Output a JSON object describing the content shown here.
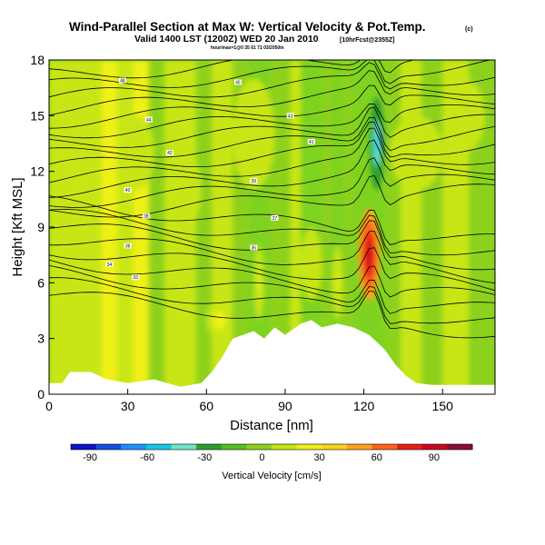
{
  "chart_data": {
    "type": "heatmap",
    "title": "Wind-Parallel Section at Max W: Vertical Velocity & Pot.Temp.",
    "title_mark": "(c)",
    "subtitle": "Valid 1400 LST (1200Z) WED 20 Jan 2010",
    "subtitle_note": "[10hrFcst@2355Z]",
    "subtitle2": "hour/max=1@0 35 61 71 03/2050m",
    "xlabel": "Distance [nm]",
    "ylabel": "Height [Kft MSL]",
    "xlim": [
      0,
      170
    ],
    "ylim": [
      0,
      18
    ],
    "xticks": [
      "0",
      "30",
      "60",
      "90",
      "120",
      "150"
    ],
    "yticks": [
      "0",
      "3",
      "6",
      "9",
      "12",
      "15",
      "18"
    ],
    "colorbar": {
      "label": "Vertical Velocity [cm/s]",
      "ticks": [
        "-90",
        "-60",
        "-30",
        "0",
        "30",
        "60",
        "90"
      ],
      "min": -100,
      "max": 110,
      "colors": [
        "#0a14c8",
        "#1450e6",
        "#1e90ff",
        "#14c8e6",
        "#6ee6c8",
        "#2e9e2e",
        "#55c01e",
        "#8cd21e",
        "#c8e614",
        "#f0f014",
        "#ffd21e",
        "#ffa01e",
        "#ff6414",
        "#e61e14",
        "#c80a1e",
        "#8c0a3c"
      ]
    },
    "velocity_regions": [
      {
        "x": [
          118,
          126
        ],
        "y": [
          5,
          10
        ],
        "value": 95,
        "note": "strong updraft"
      },
      {
        "x": [
          108,
          112
        ],
        "y": [
          4,
          8
        ],
        "value": 20
      },
      {
        "x": [
          96,
          104
        ],
        "y": [
          5,
          9
        ],
        "value": 15
      },
      {
        "x": [
          122,
          128
        ],
        "y": [
          11,
          16
        ],
        "value": -50,
        "note": "downdraft"
      },
      {
        "x": [
          78,
          82
        ],
        "y": [
          4,
          8
        ],
        "value": 20
      },
      {
        "x": [
          60,
          70
        ],
        "y": [
          3,
          5
        ],
        "value": 25
      }
    ],
    "terrain_top_kft": [
      [
        0,
        0.6
      ],
      [
        5,
        0.6
      ],
      [
        8,
        1.2
      ],
      [
        16,
        1.2
      ],
      [
        22,
        0.8
      ],
      [
        30,
        0.6
      ],
      [
        40,
        0.8
      ],
      [
        50,
        0.4
      ],
      [
        58,
        0.6
      ],
      [
        62,
        1.2
      ],
      [
        66,
        2.0
      ],
      [
        70,
        3.0
      ],
      [
        74,
        3.2
      ],
      [
        78,
        3.4
      ],
      [
        82,
        3.0
      ],
      [
        86,
        3.6
      ],
      [
        90,
        3.2
      ],
      [
        96,
        3.8
      ],
      [
        100,
        4.0
      ],
      [
        104,
        3.6
      ],
      [
        110,
        3.8
      ],
      [
        116,
        3.6
      ],
      [
        122,
        3.2
      ],
      [
        128,
        2.4
      ],
      [
        132,
        1.6
      ],
      [
        136,
        1.0
      ],
      [
        140,
        0.6
      ],
      [
        146,
        0.5
      ],
      [
        170,
        0.5
      ]
    ],
    "isentrope_labels": [
      "48",
      "45",
      "44",
      "43",
      "42",
      "41",
      "40",
      "39",
      "38",
      "37",
      "36",
      "35",
      "34",
      "33"
    ]
  }
}
